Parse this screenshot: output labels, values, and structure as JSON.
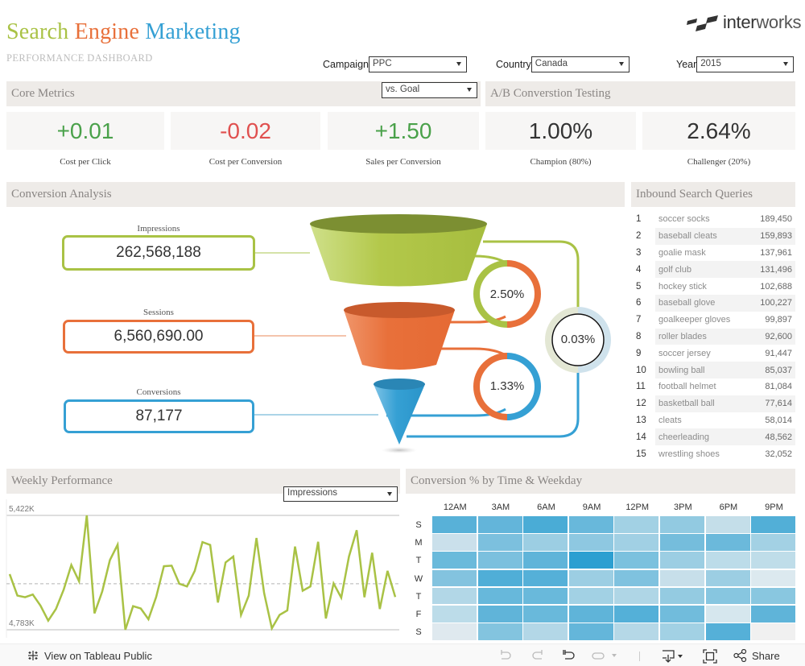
{
  "header": {
    "title_words": [
      {
        "text": "Search",
        "color": "#a9c245"
      },
      {
        "text": "Engine",
        "color": "#e8703a"
      },
      {
        "text": "Marketing",
        "color": "#35a0d4"
      }
    ],
    "subtitle": "PERFORMANCE DASHBOARD",
    "logo": {
      "text_bold": "inter",
      "text_light": "works"
    }
  },
  "filters": {
    "campaign": {
      "label": "Campaign",
      "value": "PPC"
    },
    "country": {
      "label": "Country",
      "value": "Canada"
    },
    "year": {
      "label": "Year",
      "value": "2015"
    }
  },
  "core_metrics": {
    "title": "Core Metrics",
    "compare_select": "vs. Goal",
    "items": [
      {
        "value": "+0.01",
        "label": "Cost per Click",
        "color": "#4aa14a"
      },
      {
        "value": "-0.02",
        "label": "Cost per Conversion",
        "color": "#e0504f"
      },
      {
        "value": "+1.50",
        "label": "Sales per Conversion",
        "color": "#4aa14a"
      }
    ]
  },
  "ab_testing": {
    "title": "A/B Converstion Testing",
    "items": [
      {
        "value": "1.00%",
        "label": "Champion (80%)"
      },
      {
        "value": "2.64%",
        "label": "Challenger (20%)"
      }
    ]
  },
  "conversion_analysis": {
    "title": "Conversion Analysis",
    "stages": [
      {
        "label": "Impressions",
        "value": "262,568,188",
        "color": "#a9c245"
      },
      {
        "label": "Sessions",
        "value": "6,560,690.00",
        "color": "#e8703a"
      },
      {
        "label": "Conversions",
        "value": "87,177",
        "color": "#35a0d4"
      }
    ],
    "rates": {
      "impressions_to_sessions": "2.50%",
      "sessions_to_conversions": "1.33%",
      "impressions_to_conversions": "0.03%"
    }
  },
  "inbound_queries": {
    "title": "Inbound Search Queries",
    "rows": [
      {
        "rank": "1",
        "term": "soccer socks",
        "count": "189,450"
      },
      {
        "rank": "2",
        "term": "baseball cleats",
        "count": "159,893"
      },
      {
        "rank": "3",
        "term": "goalie mask",
        "count": "137,961"
      },
      {
        "rank": "4",
        "term": "golf club",
        "count": "131,496"
      },
      {
        "rank": "5",
        "term": "hockey stick",
        "count": "102,688"
      },
      {
        "rank": "6",
        "term": "baseball glove",
        "count": "100,227"
      },
      {
        "rank": "7",
        "term": "goalkeeper gloves",
        "count": "99,897"
      },
      {
        "rank": "8",
        "term": "roller blades",
        "count": "92,600"
      },
      {
        "rank": "9",
        "term": "soccer jersey",
        "count": "91,447"
      },
      {
        "rank": "10",
        "term": "bowling ball",
        "count": "85,037"
      },
      {
        "rank": "11",
        "term": "football helmet",
        "count": "81,084"
      },
      {
        "rank": "12",
        "term": "basketball ball",
        "count": "77,614"
      },
      {
        "rank": "13",
        "term": "cleats",
        "count": "58,014"
      },
      {
        "rank": "14",
        "term": "cheerleading",
        "count": "48,562"
      },
      {
        "rank": "15",
        "term": "wrestling shoes",
        "count": "32,052"
      }
    ]
  },
  "weekly_performance": {
    "title": "Weekly Performance",
    "measure_select": "Impressions",
    "y_max_label": "5,422K",
    "y_min_label": "4,783K"
  },
  "heatmap": {
    "title": "Conversion % by Time & Weekday",
    "columns": [
      "12AM",
      "3AM",
      "6AM",
      "9AM",
      "12PM",
      "3PM",
      "6PM",
      "9PM"
    ],
    "rows": [
      "S",
      "M",
      "T",
      "W",
      "T",
      "F",
      "S"
    ],
    "colors": [
      [
        "#58b1d8",
        "#63b5da",
        "#4aacd6",
        "#68b8db",
        "#a2d1e4",
        "#92cae1",
        "#c4dee9",
        "#52afd7"
      ],
      [
        "#cae0eb",
        "#7cc0de",
        "#9ccee3",
        "#8ec8e1",
        "#a1d0e4",
        "#75bddc",
        "#6bb9db",
        "#a3d1e4"
      ],
      [
        "#6abadb",
        "#7bc0de",
        "#5fb4d9",
        "#2c9fd1",
        "#7bc1de",
        "#9ccee3",
        "#bcdce9",
        "#bfdde9"
      ],
      [
        "#83c3df",
        "#50aed7",
        "#55b0d8",
        "#9ccee3",
        "#7fc2df",
        "#c7dfea",
        "#9ccee3",
        "#dce9ef"
      ],
      [
        "#b2d7e7",
        "#67b8db",
        "#69b9db",
        "#a2d1e4",
        "#afd6e6",
        "#94cbe1",
        "#87c6e0",
        "#89c7e0"
      ],
      [
        "#bcdce9",
        "#60b4d9",
        "#69b9db",
        "#5fb4d9",
        "#54b0d8",
        "#71bcdc",
        "#d6e7ee",
        "#5fb4d9"
      ],
      [
        "#dfe9ef",
        "#83c4df",
        "#b3d7e7",
        "#64b6da",
        "#b5d8e7",
        "#a2d1e4",
        "#55b0d8",
        "#f0f0f0"
      ]
    ]
  },
  "footer": {
    "view_link": "View on Tableau Public",
    "share_label": "Share"
  },
  "chart_data": [
    {
      "type": "line",
      "title": "Weekly Performance",
      "xlabel": "",
      "ylabel": "Impressions",
      "y_tick_labels": [
        "4,783K",
        "5,422K"
      ],
      "ylim": [
        4783,
        5422
      ],
      "reference_line": "average (dashed)",
      "series": [
        {
          "name": "Impressions (K)",
          "values": [
            5094,
            4974,
            4965,
            4980,
            4918,
            4834,
            4899,
            5007,
            5145,
            5054,
            5422,
            4875,
            4997,
            5172,
            5258,
            4783,
            4915,
            4902,
            4842,
            4966,
            5138,
            5141,
            5040,
            5025,
            5112,
            5273,
            5257,
            4935,
            5159,
            5192,
            4866,
            4974,
            5296,
            4988,
            4791,
            4866,
            4891,
            5248,
            5001,
            5025,
            5275,
            4846,
            5042,
            4962,
            5192,
            5339,
            4965,
            5213,
            4899,
            5112,
            4966
          ]
        }
      ],
      "color": "#a9c245"
    },
    {
      "type": "heatmap",
      "title": "Conversion % by Time & Weekday",
      "x": [
        "12AM",
        "3AM",
        "6AM",
        "9AM",
        "12PM",
        "3PM",
        "6PM",
        "9PM"
      ],
      "y": [
        "S",
        "M",
        "T",
        "W",
        "T",
        "F",
        "S"
      ],
      "values_relative_intensity_0_to_10": [
        [
          7,
          7,
          8,
          7,
          4,
          5,
          2,
          8
        ],
        [
          2,
          6,
          4,
          5,
          4,
          6,
          6,
          4
        ],
        [
          6,
          6,
          7,
          10,
          6,
          4,
          2,
          2
        ],
        [
          5,
          8,
          8,
          4,
          5,
          2,
          4,
          1
        ],
        [
          3,
          7,
          6,
          4,
          3,
          4,
          5,
          5
        ],
        [
          2,
          7,
          6,
          7,
          8,
          6,
          1,
          7
        ],
        [
          1,
          5,
          3,
          7,
          3,
          4,
          8,
          0
        ]
      ]
    },
    {
      "type": "table",
      "title": "Conversion Analysis Funnel",
      "categories": [
        "Impressions",
        "Sessions",
        "Conversions"
      ],
      "values": [
        262568188,
        6560690,
        87177
      ],
      "rates": {
        "Impressions→Sessions": 2.5,
        "Sessions→Conversions": 1.33,
        "Impressions→Conversions": 0.03
      }
    }
  ]
}
